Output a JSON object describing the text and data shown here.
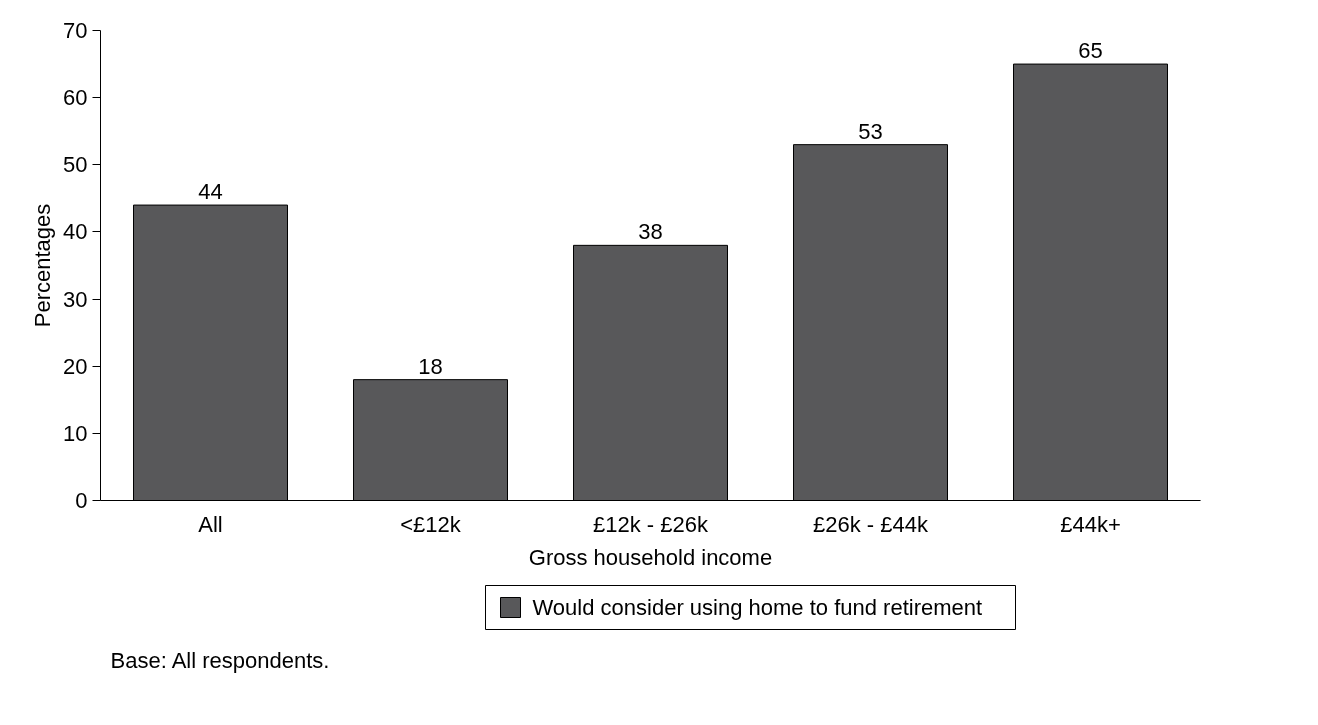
{
  "chart_data": {
    "type": "bar",
    "xlabel": "Gross household income",
    "ylabel": "Percentages",
    "categories": [
      "All",
      "<£12k",
      "£12k - £26k",
      "£26k - £44k",
      "£44k+"
    ],
    "series": [
      {
        "name": "Would consider using home to fund retirement",
        "color": "#58585a",
        "values": [
          44,
          18,
          38,
          53,
          65
        ]
      }
    ],
    "ylim": [
      0,
      70
    ],
    "yticks": [
      0,
      10,
      20,
      30,
      40,
      50,
      60,
      70
    ],
    "grid": false,
    "legend": "bottom",
    "data_labels": true,
    "annotations": [
      "Base: All respondents."
    ]
  }
}
